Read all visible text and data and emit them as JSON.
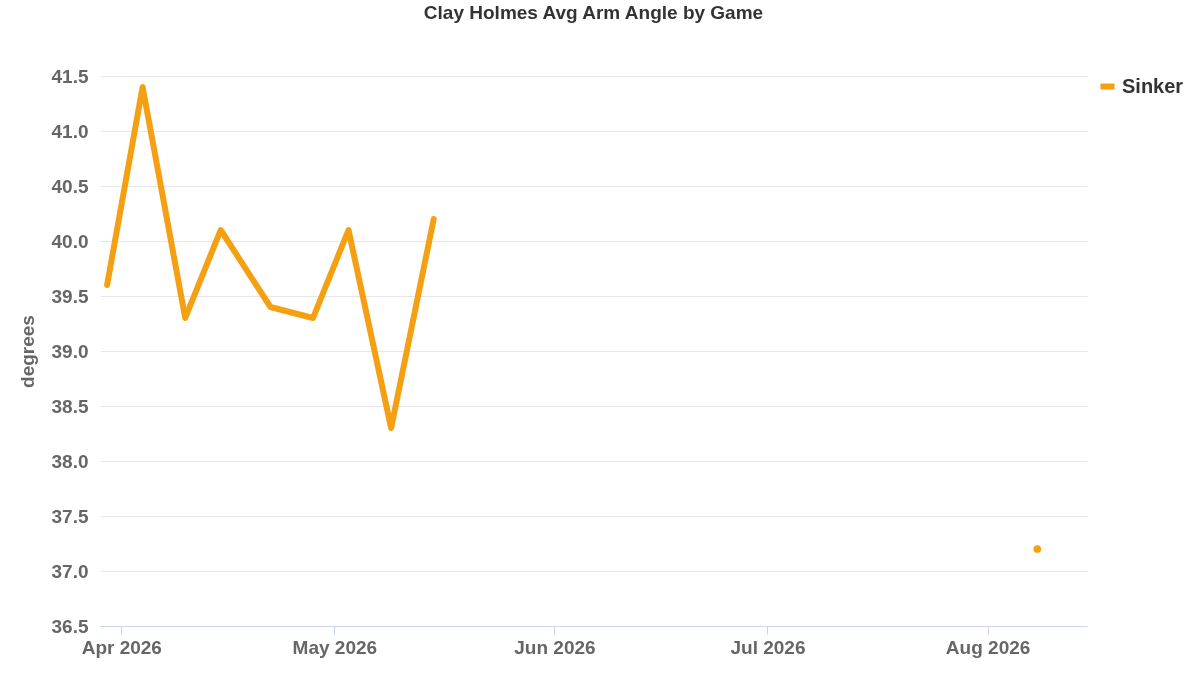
{
  "chart_data": {
    "type": "line",
    "title": "Clay Holmes Avg Arm Angle by Game",
    "ylabel": "degrees",
    "x": [
      "2026-03-30",
      "2026-04-04",
      "2026-04-10",
      "2026-04-15",
      "2026-04-22",
      "2026-04-28",
      "2026-05-03",
      "2026-05-09",
      "2026-05-15",
      "2026-06-01",
      "2026-08-08"
    ],
    "series": [
      {
        "name": "Sinker",
        "color": "#f5a012",
        "values": [
          39.6,
          41.4,
          39.3,
          40.1,
          39.4,
          39.3,
          40.1,
          38.3,
          40.2,
          null,
          37.2
        ]
      }
    ],
    "xlim": [
      "2026-03-29",
      "2026-08-15"
    ],
    "xticks": [
      {
        "value": "2026-04-01",
        "label": "Apr 2026"
      },
      {
        "value": "2026-05-01",
        "label": "May 2026"
      },
      {
        "value": "2026-06-01",
        "label": "Jun 2026"
      },
      {
        "value": "2026-07-01",
        "label": "Jul 2026"
      },
      {
        "value": "2026-08-01",
        "label": "Aug 2026"
      }
    ],
    "ylim": [
      36.5,
      41.5
    ],
    "yticks": [
      {
        "value": 36.5,
        "label": "36.5"
      },
      {
        "value": 37,
        "label": "37.0"
      },
      {
        "value": 37.5,
        "label": "37.5"
      },
      {
        "value": 38,
        "label": "38.0"
      },
      {
        "value": 38.5,
        "label": "38.5"
      },
      {
        "value": 39,
        "label": "39.0"
      },
      {
        "value": 39.5,
        "label": "39.5"
      },
      {
        "value": 40,
        "label": "40.0"
      },
      {
        "value": 40.5,
        "label": "40.5"
      },
      {
        "value": 41,
        "label": "41.0"
      },
      {
        "value": 41.5,
        "label": "41.5"
      }
    ],
    "grid": "y",
    "legend": "right"
  }
}
